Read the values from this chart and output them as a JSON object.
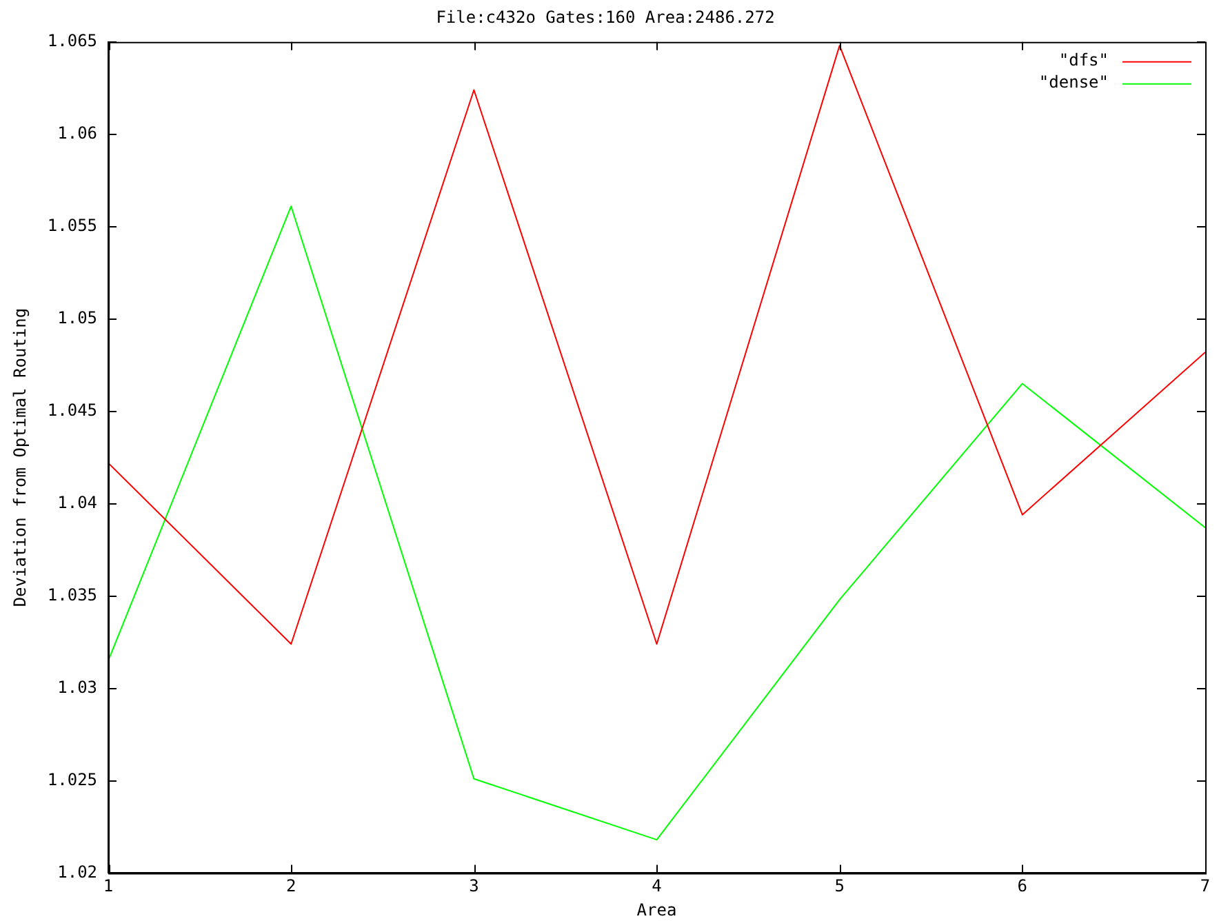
{
  "chart_data": {
    "type": "line",
    "title": "File:c432o Gates:160 Area:2486.272",
    "xlabel": "Area",
    "ylabel": "Deviation from Optimal Routing",
    "x": [
      1,
      2,
      3,
      4,
      5,
      6,
      7
    ],
    "series": [
      {
        "name": "\"dfs\"",
        "color": "#ff0000",
        "values": [
          1.0422,
          1.0324,
          1.0624,
          1.0324,
          1.0648,
          1.0394,
          1.0482
        ]
      },
      {
        "name": "\"dense\"",
        "color": "#00ff00",
        "values": [
          1.0315,
          1.0561,
          1.0251,
          1.0218,
          1.0348,
          1.0465,
          1.0387
        ]
      }
    ],
    "xlim": [
      1,
      7
    ],
    "xticks": [
      1,
      2,
      3,
      4,
      5,
      6,
      7
    ],
    "ylim": [
      1.02,
      1.065
    ],
    "yticks": [
      1.02,
      1.025,
      1.03,
      1.035,
      1.04,
      1.045,
      1.05,
      1.055,
      1.06,
      1.065
    ],
    "grid": false,
    "legend": "top right",
    "marker": "none",
    "line_style": "solid"
  }
}
